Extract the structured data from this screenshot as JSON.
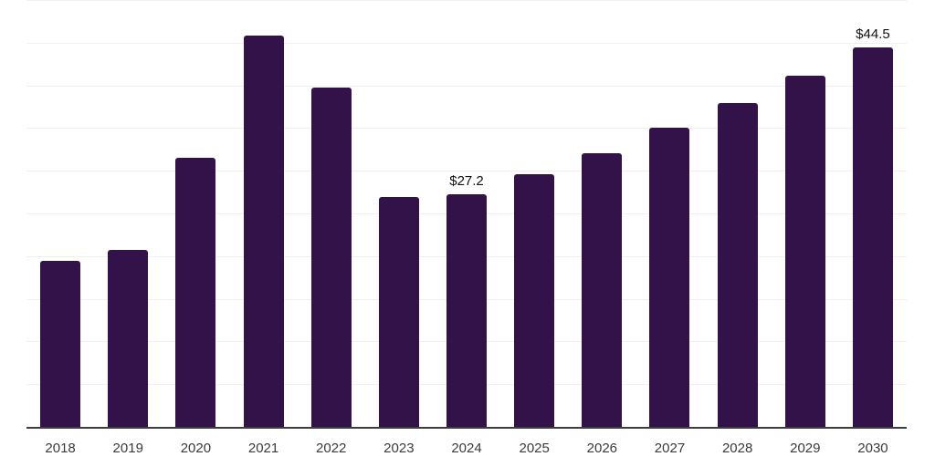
{
  "chart_data": {
    "type": "bar",
    "categories": [
      "2018",
      "2019",
      "2020",
      "2021",
      "2022",
      "2023",
      "2024",
      "2025",
      "2026",
      "2027",
      "2028",
      "2029",
      "2030"
    ],
    "values": [
      19.5,
      20.7,
      31.5,
      45.8,
      39.7,
      26.9,
      27.2,
      29.6,
      32.1,
      35.0,
      37.9,
      41.1,
      44.5
    ],
    "data_labels": [
      {
        "category_index": 6,
        "text": "$27.2"
      },
      {
        "category_index": 12,
        "text": "$44.5"
      }
    ],
    "title": "",
    "xlabel": "",
    "ylabel": "",
    "ylim": [
      0,
      50
    ],
    "grid_interval": 5,
    "grid": true,
    "legend": false,
    "y_axis_labels_visible": false,
    "colors": {
      "bar": "#331249",
      "axis_line": "#3d3d3d",
      "gridline": "#f0f0f0",
      "tick_label": "#3a3a3a",
      "data_label": "#111111",
      "background": "#ffffff"
    }
  }
}
